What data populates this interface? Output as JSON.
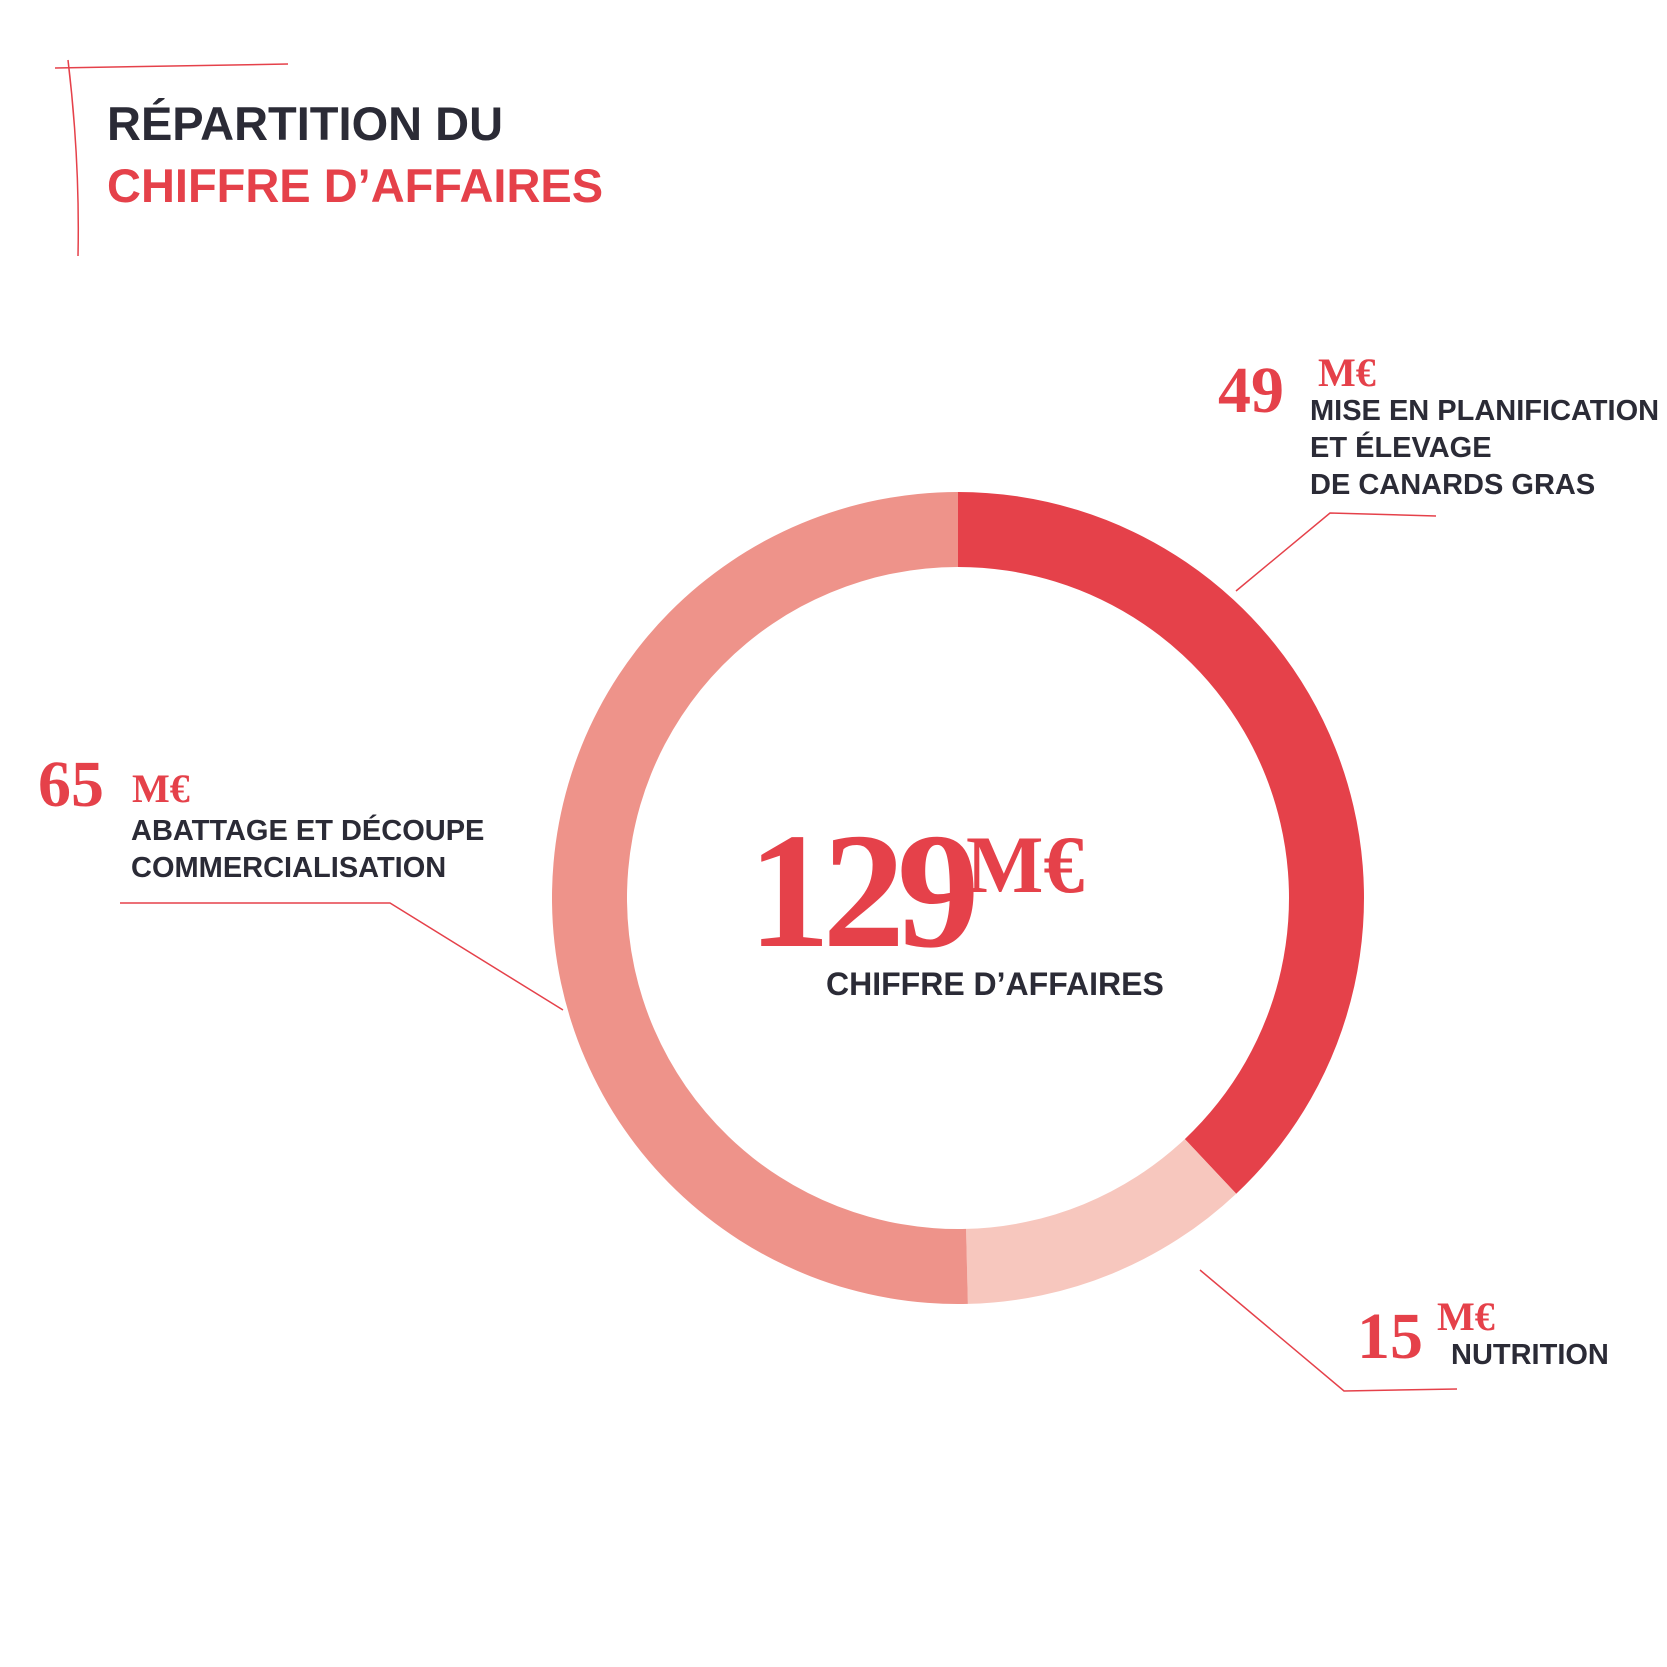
{
  "chart_data": {
    "type": "donut",
    "title": [
      "RÉPARTITION DU",
      "CHIFFRE D’AFFAIRES"
    ],
    "categories": [
      [
        "MISE EN PLANIFICATION",
        "ET ÉLEVAGE",
        "DE CANARDS GRAS"
      ],
      [
        "NUTRITION"
      ],
      [
        "ABATTAGE ET DÉCOUPE",
        "COMMERCIALISATION"
      ]
    ],
    "values": [
      49,
      15,
      65
    ],
    "colors": [
      "#e5414a",
      "#f7c7be",
      "#ee938a"
    ],
    "unit": "M€",
    "total": 129,
    "total_label": "CHIFFRE D’AFFAIRES"
  }
}
